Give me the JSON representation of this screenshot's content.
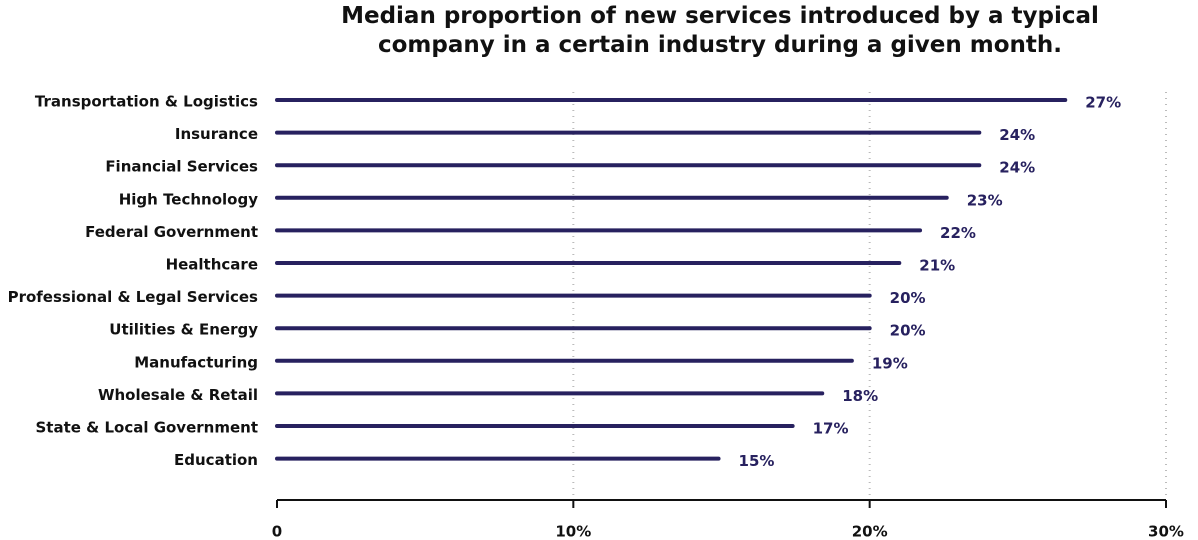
{
  "chart_data": {
    "type": "bar",
    "orientation": "horizontal",
    "title": "Median proportion of new services introduced by a typical company in a certain industry during a given month.",
    "categories": [
      "Transportation & Logistics",
      "Insurance",
      "Financial Services",
      "High Technology",
      "Federal Government",
      "Healthcare",
      "Professional & Legal Services",
      "Utilities & Energy",
      "Manufacturing",
      "Wholesale & Retail",
      "State & Local Government",
      "Education"
    ],
    "values": [
      26.6,
      23.7,
      23.7,
      22.6,
      21.7,
      21.0,
      20.0,
      20.0,
      19.4,
      18.4,
      17.4,
      14.9
    ],
    "value_labels": [
      "27%",
      "24%",
      "24%",
      "23%",
      "22%",
      "21%",
      "20%",
      "20%",
      "19%",
      "18%",
      "17%",
      "15%"
    ],
    "color": "#27215f",
    "xlim": [
      0,
      30
    ],
    "xticks": [
      0,
      {
        "value": 10,
        "label": "10%"
      },
      {
        "value": 20,
        "label": "20%"
      },
      {
        "value": 30,
        "label": "30%"
      }
    ],
    "grid": true
  }
}
